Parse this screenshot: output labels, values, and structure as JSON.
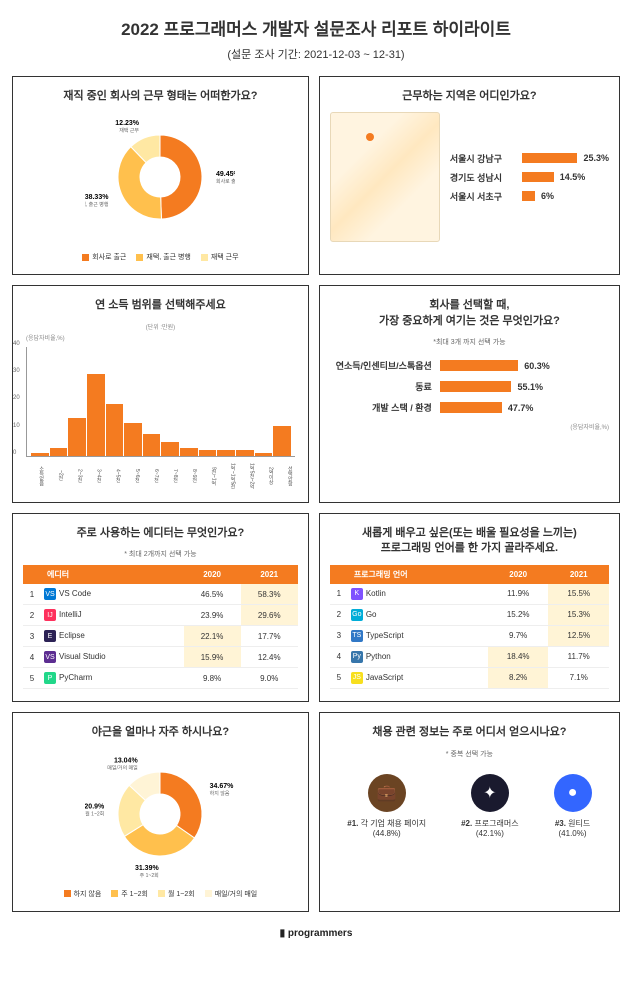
{
  "title": "2022 프로그래머스 개발자 설문조사 리포트 하이라이트",
  "subtitle": "(설문 조사 기간: 2021-12-03 ~ 12-31)",
  "colors": {
    "primary": "#f47b20",
    "secondary": "#ffc04d",
    "tertiary": "#ffe8a3",
    "border": "#333"
  },
  "workType": {
    "title": "재직 중인 회사의 근무 형태는 어떠한가요?",
    "slices": [
      {
        "label": "회사로 출근",
        "pct": 49.45,
        "color": "#f47b20"
      },
      {
        "label": "재택, 출근 병행",
        "pct": 38.33,
        "color": "#ffc04d"
      },
      {
        "label": "재택 근무",
        "pct": 12.23,
        "color": "#ffe8a3"
      }
    ]
  },
  "region": {
    "title": "근무하는 지역은 어디인가요?",
    "items": [
      {
        "name": "서울시 강남구",
        "pct": 25.3
      },
      {
        "name": "경기도 성남시",
        "pct": 14.5
      },
      {
        "name": "서울시 서초구",
        "pct": 6.0
      }
    ]
  },
  "income": {
    "title": "연 소득 범위를 선택해주세요",
    "unit": "(단위 :만원)",
    "yaxis_note": "(응답자비율,%)",
    "ylim": [
      0,
      40
    ],
    "yticks": [
      0,
      10,
      20,
      30,
      40
    ],
    "categories": [
      "소득없음",
      "~2천",
      "2~3천",
      "3~4천",
      "4~5천",
      "5~6천",
      "6~7천",
      "7~8천",
      "8~9천",
      "9천~1억",
      "1억~1억5천",
      "1억5천~2억",
      "2억이상",
      "선택안함"
    ],
    "values": [
      1,
      3,
      14,
      30,
      19,
      12,
      8,
      5,
      3,
      2,
      2,
      2,
      1,
      11
    ]
  },
  "priority": {
    "title": "회사를 선택할 때,\n가장 중요하게 여기는 것은 무엇인가요?",
    "note": "*최대 3개 까지 선택 가능",
    "items": [
      {
        "name": "연소득/인센티브/스톡옵션",
        "pct": 60.3
      },
      {
        "name": "동료",
        "pct": 55.1
      },
      {
        "name": "개발 스택 / 환경",
        "pct": 47.7
      }
    ],
    "footnote": "(응답자비율,%)"
  },
  "editor": {
    "title": "주로 사용하는 에디터는 무엇인가요?",
    "note": "* 최대 2개까지 선택 가능",
    "cols": [
      "",
      "에디터",
      "2020",
      "2021"
    ],
    "rows": [
      {
        "rank": 1,
        "icon": "VS",
        "iconBg": "#0078d4",
        "name": "VS Code",
        "y2020": "46.5%",
        "y2021": "58.3%",
        "hl": "2021"
      },
      {
        "rank": 2,
        "icon": "IJ",
        "iconBg": "#fe315d",
        "name": "IntelliJ",
        "y2020": "23.9%",
        "y2021": "29.6%",
        "hl": "2021"
      },
      {
        "rank": 3,
        "icon": "E",
        "iconBg": "#2c2255",
        "name": "Eclipse",
        "y2020": "22.1%",
        "y2021": "17.7%",
        "hl": "2020"
      },
      {
        "rank": 4,
        "icon": "VS",
        "iconBg": "#5c2d91",
        "name": "Visual Studio",
        "y2020": "15.9%",
        "y2021": "12.4%",
        "hl": "2020"
      },
      {
        "rank": 5,
        "icon": "P",
        "iconBg": "#21d789",
        "name": "PyCharm",
        "y2020": "9.8%",
        "y2021": "9.0%",
        "hl": ""
      }
    ]
  },
  "language": {
    "title": "새롭게 배우고 싶은(또는 배울 필요성을 느끼는)\n프로그래밍 언어를 한 가지 골라주세요.",
    "cols": [
      "",
      "프로그래밍 언어",
      "2020",
      "2021"
    ],
    "rows": [
      {
        "rank": 1,
        "icon": "K",
        "iconBg": "#7f52ff",
        "name": "Kotlin",
        "y2020": "11.9%",
        "y2021": "15.5%",
        "hl": "2021"
      },
      {
        "rank": 2,
        "icon": "Go",
        "iconBg": "#00add8",
        "name": "Go",
        "y2020": "15.2%",
        "y2021": "15.3%",
        "hl": "2021"
      },
      {
        "rank": 3,
        "icon": "TS",
        "iconBg": "#3178c6",
        "name": "TypeScript",
        "y2020": "9.7%",
        "y2021": "12.5%",
        "hl": "2021"
      },
      {
        "rank": 4,
        "icon": "Py",
        "iconBg": "#3776ab",
        "name": "Python",
        "y2020": "18.4%",
        "y2021": "11.7%",
        "hl": "2020"
      },
      {
        "rank": 5,
        "icon": "JS",
        "iconBg": "#f7df1e",
        "name": "JavaScript",
        "y2020": "8.2%",
        "y2021": "7.1%",
        "hl": "2020"
      }
    ]
  },
  "overtime": {
    "title": "야근을 얼마나 자주 하시나요?",
    "slices": [
      {
        "label": "하지 않음",
        "pct": 34.67,
        "color": "#f47b20"
      },
      {
        "label": "주 1~2회",
        "pct": 31.39,
        "color": "#ffc04d"
      },
      {
        "label": "월 1~2회",
        "pct": 20.9,
        "color": "#ffe8a3"
      },
      {
        "label": "매일/거의 매일",
        "pct": 13.04,
        "color": "#fff4d6"
      }
    ]
  },
  "recruit": {
    "title": "채용 관련 정보는 주로 어디서 얻으시나요?",
    "note": "* 중복 선택 가능",
    "items": [
      {
        "rank": "#1.",
        "name": "각 기업 채용 페이지",
        "pct": "(44.8%)",
        "color": "#6b4423",
        "icon": "💼"
      },
      {
        "rank": "#2.",
        "name": "프로그래머스",
        "pct": "(42.1%)",
        "color": "#1a1a2e",
        "icon": "✦"
      },
      {
        "rank": "#3.",
        "name": "원티드",
        "pct": "(41.0%)",
        "color": "#3366ff",
        "icon": "●"
      }
    ]
  },
  "footer": "programmers"
}
